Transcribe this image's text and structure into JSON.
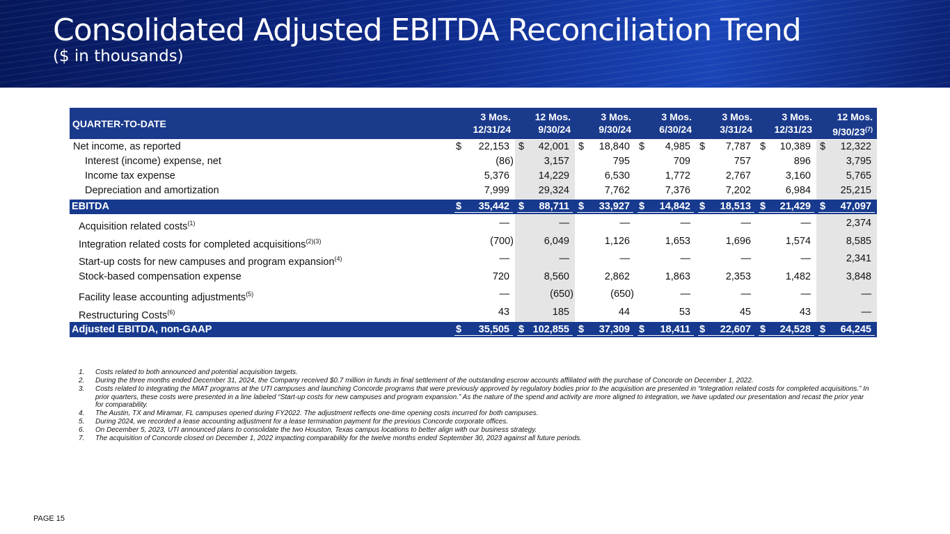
{
  "header": {
    "title": "Consolidated Adjusted EBITDA Reconciliation Trend",
    "subtitle": "($ in thousands)"
  },
  "table": {
    "corner": "QUARTER-TO-DATE",
    "columns": [
      {
        "period": "3 Mos.",
        "date": "12/31/24"
      },
      {
        "period": "12 Mos.",
        "date": "9/30/24"
      },
      {
        "period": "3 Mos.",
        "date": "9/30/24"
      },
      {
        "period": "3 Mos.",
        "date": "6/30/24"
      },
      {
        "period": "3 Mos.",
        "date": "3/31/24"
      },
      {
        "period": "3 Mos.",
        "date": "12/31/23"
      },
      {
        "period": "12 Mos.",
        "date": "9/30/23",
        "note": "(7)"
      }
    ],
    "rows": [
      {
        "label": "Net income, as reported",
        "prefix": "$",
        "cells": [
          "22,153",
          "42,001",
          "18,840",
          "4,985",
          "7,787",
          "10,389",
          "12,322"
        ]
      },
      {
        "label": "Interest (income) expense, net",
        "cells": [
          "(86)",
          "3,157",
          "795",
          "709",
          "757",
          "896",
          "3,795"
        ]
      },
      {
        "label": "Income tax expense",
        "cells": [
          "5,376",
          "14,229",
          "6,530",
          "1,772",
          "2,767",
          "3,160",
          "5,765"
        ]
      },
      {
        "label": "Depreciation and amortization",
        "cells": [
          "7,999",
          "29,324",
          "7,762",
          "7,376",
          "7,202",
          "6,984",
          "25,215"
        ]
      },
      {
        "label": "EBITDA",
        "prefix": "$",
        "cells": [
          "35,442",
          "88,711",
          "33,927",
          "14,842",
          "18,513",
          "21,429",
          "47,097"
        ]
      },
      {
        "label": "Acquisition related costs",
        "note": "(1)",
        "cells": [
          "—",
          "—",
          "—",
          "—",
          "—",
          "—",
          "2,374"
        ]
      },
      {
        "label": "Integration related costs for completed acquisitions",
        "note": "(2)(3)",
        "cells": [
          "(700)",
          "6,049",
          "1,126",
          "1,653",
          "1,696",
          "1,574",
          "8,585"
        ]
      },
      {
        "label": "Start-up costs for new campuses and program expansion",
        "note": "(4)",
        "cells": [
          "—",
          "—",
          "—",
          "—",
          "—",
          "—",
          "2,341"
        ]
      },
      {
        "label": "Stock-based compensation expense",
        "cells": [
          "720",
          "8,560",
          "2,862",
          "1,863",
          "2,353",
          "1,482",
          "3,848"
        ]
      },
      {
        "label": "Facility lease accounting adjustments",
        "note": "(5)",
        "cells": [
          "—",
          "(650)",
          "(650)",
          "—",
          "—",
          "—",
          "—"
        ]
      },
      {
        "label": "Restructuring Costs",
        "note": "(6)",
        "cells": [
          "43",
          "185",
          "44",
          "53",
          "45",
          "43",
          "—"
        ]
      },
      {
        "label": "Adjusted EBITDA, non-GAAP",
        "prefix": "$",
        "cells": [
          "35,505",
          "102,855",
          "37,309",
          "18,411",
          "22,607",
          "24,528",
          "64,245"
        ]
      }
    ]
  },
  "footnotes": [
    {
      "number": "1.",
      "text": "Costs related to both announced and potential acquisition targets."
    },
    {
      "number": "2.",
      "text": "During the three months ended December 31, 2024, the Company received $0.7 million in funds in final settlement of the outstanding escrow accounts affiliated with the purchase of Concorde on December 1, 2022."
    },
    {
      "number": "3.",
      "text": "Costs related to integrating the MIAT programs at the UTI campuses and launching Concorde programs that were previously approved by regulatory bodies prior to the acquisition are presented in “Integration related costs for completed acquisitions.” In prior quarters, these costs were presented in a line labeled “Start-up costs for new campuses and program expansion.” As the nature of the spend and activity are more aligned to integration, we have updated our presentation and recast the prior year for comparability."
    },
    {
      "number": "4.",
      "text": "The Austin, TX and Miramar, FL campuses opened during FY2022. The adjustment reflects one-time opening costs incurred for both campuses."
    },
    {
      "number": "5.",
      "text": "During 2024, we recorded a lease accounting adjustment for a lease termination payment for the previous Concorde corporate offices."
    },
    {
      "number": "6.",
      "text": "On December 5, 2023, UTI announced plans to consolidate the two Houston, Texas campus locations to better align with our business strategy."
    },
    {
      "number": "7.",
      "text": "The acquisition of Concorde closed on December 1, 2022 impacting comparability for the twelve months ended September 30, 2023 against all future periods."
    }
  ],
  "footer": {
    "page": "PAGE 15"
  }
}
